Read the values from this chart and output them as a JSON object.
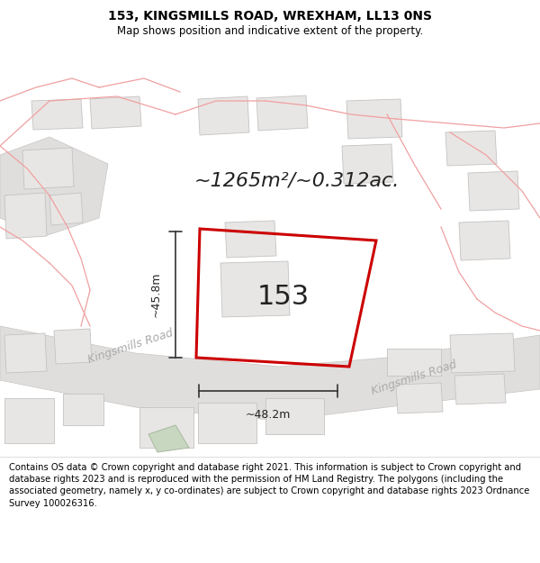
{
  "title": "153, KINGSMILLS ROAD, WREXHAM, LL13 0NS",
  "subtitle": "Map shows position and indicative extent of the property.",
  "area_text": "~1265m²/~0.312ac.",
  "property_label": "153",
  "measurement_left": "~45.8m",
  "measurement_bottom": "~48.2m",
  "road_label1": "Kingsmills Road",
  "road_label2": "Kingsmills Road",
  "footer": "Contains OS data © Crown copyright and database right 2021. This information is subject to Crown copyright and database rights 2023 and is reproduced with the permission of HM Land Registry. The polygons (including the associated geometry, namely x, y co-ordinates) are subject to Crown copyright and database rights 2023 Ordnance Survey 100026316.",
  "bg_color": "#f5f3f0",
  "white": "#ffffff",
  "property_edge": "#cc0000",
  "road_gray": "#e0dedd",
  "road_edge": "#c8c5c3",
  "building_fill": "#e8e6e4",
  "building_edge": "#c5c3c1",
  "green_fill": "#c8d8c0",
  "green_edge": "#a8b8a0",
  "line_red": "#f0a0a0",
  "line_red2": "#e08080",
  "title_fontsize": 10,
  "subtitle_fontsize": 8.5,
  "area_fontsize": 16,
  "label_fontsize": 22,
  "road_label_fontsize": 9,
  "measure_fontsize": 9,
  "footer_fontsize": 7.2
}
